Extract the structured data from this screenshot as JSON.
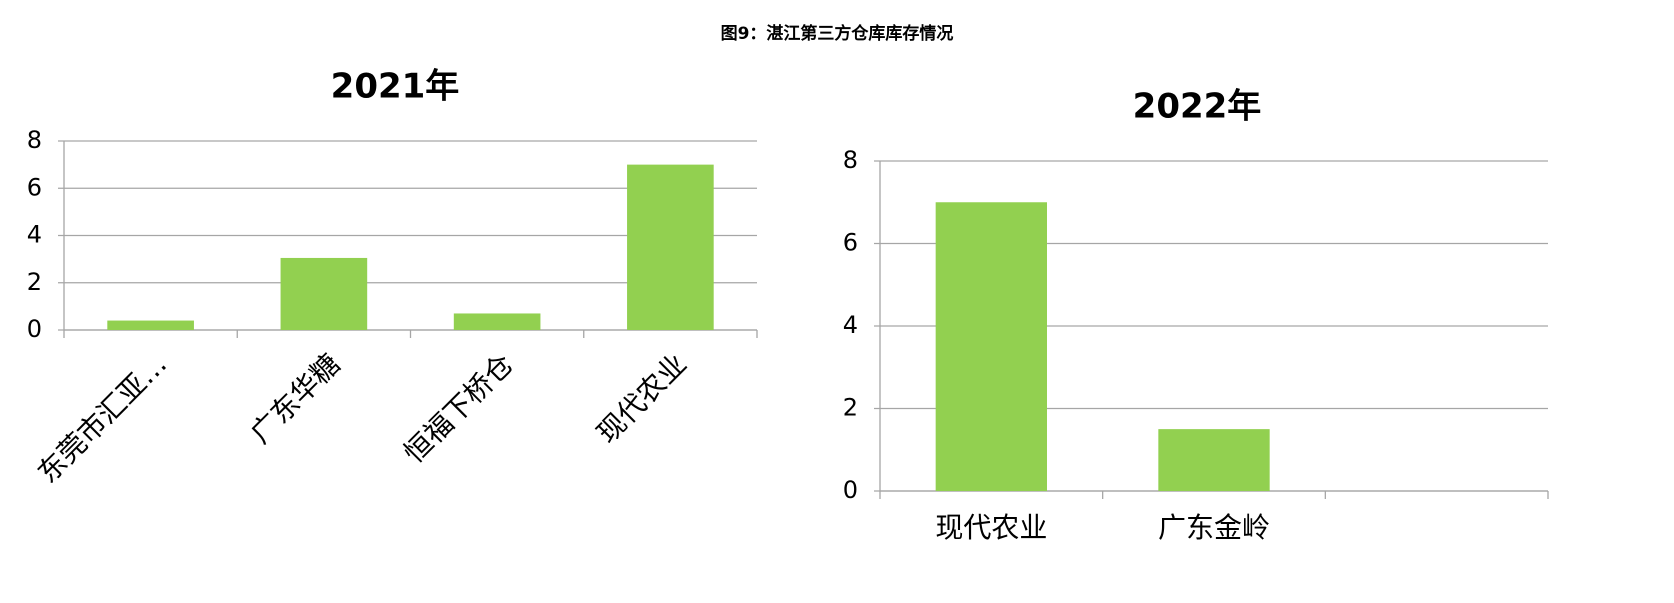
{
  "title": "图9：湛江第三方仓库库存情况",
  "chart_data": [
    {
      "type": "bar",
      "title": "2021年",
      "categories": [
        "东莞市汇亚…",
        "广东华糖",
        "恒福下桥仓",
        "现代农业"
      ],
      "values": [
        0.4,
        3.05,
        0.7,
        7.0
      ],
      "color": "#92d050",
      "ylim": [
        0,
        8
      ],
      "yticks": [
        0,
        2,
        4,
        6,
        8
      ],
      "grid": true,
      "label_rotation": -45
    },
    {
      "type": "bar",
      "title": "2022年",
      "categories": [
        "现代农业",
        "广东金岭",
        null
      ],
      "values": [
        7.0,
        1.5,
        null
      ],
      "color": "#92d050",
      "ylim": [
        0,
        8
      ],
      "yticks": [
        0,
        2,
        4,
        6,
        8
      ],
      "grid": true,
      "label_rotation": 0
    }
  ]
}
